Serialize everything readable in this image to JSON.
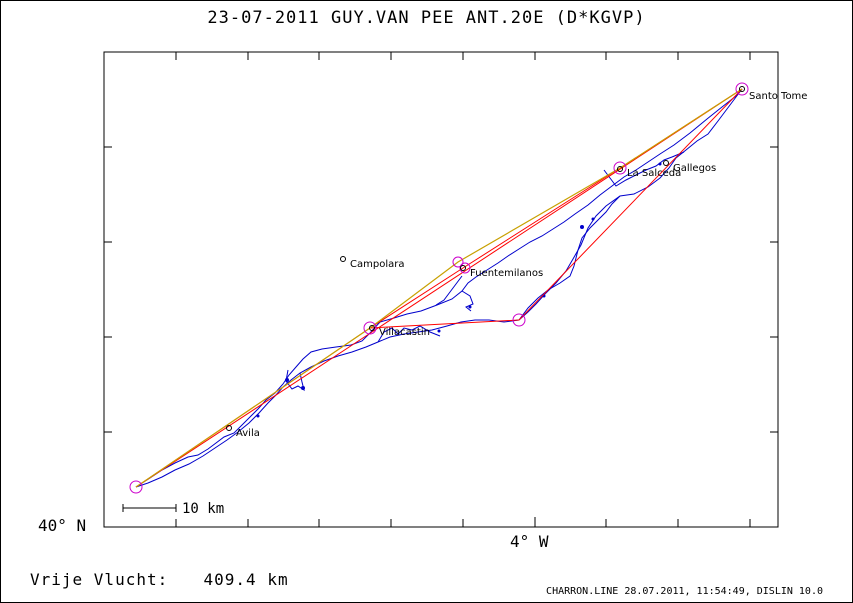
{
  "title": "23-07-2011    GUY.VAN PEE    ANT.20E (D*KGVP)",
  "axes": {
    "lat_label": "40° N",
    "lon_label": "4° W"
  },
  "scale_bar": {
    "label": "10 km"
  },
  "flight": {
    "distance_label": "Vrije Vlucht:",
    "distance_value": "409.4 km"
  },
  "footer": "CHARRON.LINE 28.07.2011, 11:54:49, DISLIN 10.0",
  "places": [
    {
      "name": "Santo Tome"
    },
    {
      "name": "La Salceda"
    },
    {
      "name": "Gallegos"
    },
    {
      "name": "Campolara"
    },
    {
      "name": "Fuentemilanos"
    },
    {
      "name": "Villacastin"
    },
    {
      "name": "Avila"
    }
  ],
  "colors": {
    "track": "#0000cc",
    "task_line": "#ff0000",
    "optimized_line": "#c8a000",
    "turnpoint": "#cc00cc",
    "frame": "#000000"
  }
}
